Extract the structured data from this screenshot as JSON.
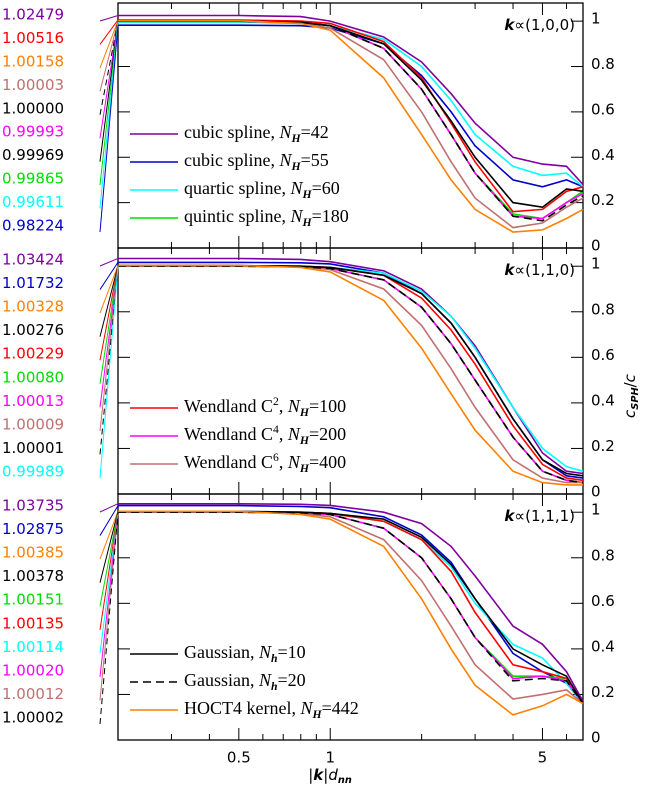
{
  "chart_data": [
    {
      "type": "line",
      "annotation": [
        {
          "t": "k",
          "s": "bi"
        },
        {
          "t": "∝(1,0,0)"
        }
      ],
      "xlim": [
        0.2,
        6.8
      ],
      "ylim": [
        0,
        1.08
      ],
      "yticks": [
        0,
        0.2,
        0.4,
        0.6,
        0.8,
        1
      ],
      "x": [
        0.2,
        0.5,
        0.8,
        1,
        1.5,
        2,
        2.5,
        3,
        4,
        5,
        6,
        6.8
      ],
      "left_labels": [
        {
          "value": 1.02479,
          "label": "1.02479",
          "color": "#7f00a0"
        },
        {
          "value": 1.00516,
          "label": "1.00516",
          "color": "#ff0000"
        },
        {
          "value": 1.00158,
          "label": "1.00158",
          "color": "#ff8000"
        },
        {
          "value": 1.00003,
          "label": "1.00003",
          "color": "#c07070"
        },
        {
          "value": 1.0,
          "label": "1.00000",
          "color": "#000000",
          "dashed": true
        },
        {
          "value": 0.99993,
          "label": "0.99993",
          "color": "#ff00ff"
        },
        {
          "value": 0.99969,
          "label": "0.99969",
          "color": "#000000"
        },
        {
          "value": 0.99865,
          "label": "0.99865",
          "color": "#00dd00"
        },
        {
          "value": 0.99611,
          "label": "0.99611",
          "color": "#00ffff"
        },
        {
          "value": 0.98224,
          "label": "0.98224",
          "color": "#0000cc"
        }
      ],
      "series": [
        {
          "name": [
            {
              "t": "cubic spline, "
            },
            {
              "t": "N",
              "s": "i"
            },
            {
              "t": "H",
              "s": "sub"
            },
            {
              "t": "=42"
            }
          ],
          "color": "#7f00a0",
          "values": [
            1.025,
            1.025,
            1.02,
            1.0,
            0.93,
            0.82,
            0.68,
            0.55,
            0.4,
            0.37,
            0.36,
            0.28
          ]
        },
        {
          "name": [
            {
              "t": "cubic spline, "
            },
            {
              "t": "N",
              "s": "i"
            },
            {
              "t": "H",
              "s": "sub"
            },
            {
              "t": "=55"
            }
          ],
          "color": "#0000cc",
          "values": [
            0.982,
            0.982,
            0.98,
            0.97,
            0.9,
            0.76,
            0.6,
            0.45,
            0.3,
            0.27,
            0.3,
            0.27
          ]
        },
        {
          "name": [
            {
              "t": "quartic spline, "
            },
            {
              "t": "N",
              "s": "i"
            },
            {
              "t": "H",
              "s": "sub"
            },
            {
              "t": "=60"
            }
          ],
          "color": "#00ffff",
          "values": [
            0.996,
            0.996,
            0.99,
            0.98,
            0.92,
            0.8,
            0.65,
            0.5,
            0.36,
            0.32,
            0.33,
            0.27
          ]
        },
        {
          "name": [
            {
              "t": "quintic spline, "
            },
            {
              "t": "N",
              "s": "i"
            },
            {
              "t": "H",
              "s": "sub"
            },
            {
              "t": "=180"
            }
          ],
          "color": "#00dd00",
          "values": [
            0.999,
            0.999,
            0.995,
            0.98,
            0.88,
            0.7,
            0.5,
            0.33,
            0.15,
            0.13,
            0.2,
            0.25
          ]
        },
        {
          "color": "#ff0000",
          "values": [
            1.005,
            1.005,
            1.0,
            0.99,
            0.91,
            0.75,
            0.55,
            0.38,
            0.16,
            0.17,
            0.25,
            0.27
          ]
        },
        {
          "color": "#ff00ff",
          "values": [
            0.9999,
            0.9999,
            0.995,
            0.98,
            0.88,
            0.7,
            0.5,
            0.33,
            0.14,
            0.13,
            0.2,
            0.24
          ]
        },
        {
          "color": "#c07070",
          "values": [
            1.0,
            1.0,
            0.99,
            0.97,
            0.83,
            0.6,
            0.38,
            0.22,
            0.09,
            0.11,
            0.18,
            0.22
          ]
        },
        {
          "color": "#000000",
          "values": [
            0.9997,
            0.9997,
            0.995,
            0.98,
            0.9,
            0.74,
            0.56,
            0.4,
            0.2,
            0.18,
            0.26,
            0.25
          ]
        },
        {
          "color": "#000000",
          "dashed": true,
          "values": [
            1.0,
            1.0,
            0.995,
            0.98,
            0.88,
            0.7,
            0.5,
            0.33,
            0.14,
            0.12,
            0.19,
            0.23
          ]
        },
        {
          "color": "#ff8000",
          "values": [
            1.0016,
            1.0016,
            0.99,
            0.96,
            0.75,
            0.5,
            0.3,
            0.17,
            0.07,
            0.08,
            0.13,
            0.17
          ]
        }
      ]
    },
    {
      "type": "line",
      "annotation": [
        {
          "t": "k",
          "s": "bi"
        },
        {
          "t": "∝(1,1,0)"
        }
      ],
      "xlim": [
        0.2,
        6.8
      ],
      "ylim": [
        0,
        1.08
      ],
      "yticks": [
        0,
        0.2,
        0.4,
        0.6,
        0.8,
        1
      ],
      "ylabel": [
        {
          "t": "c",
          "s": "i"
        },
        {
          "t": "SPH",
          "s": "sub"
        },
        {
          "t": "/"
        },
        {
          "t": "c",
          "s": "i"
        }
      ],
      "x": [
        0.2,
        0.5,
        0.8,
        1,
        1.5,
        2,
        2.5,
        3,
        4,
        5,
        6,
        6.8
      ],
      "left_labels": [
        {
          "value": 1.03424,
          "label": "1.03424",
          "color": "#7f00a0"
        },
        {
          "value": 1.01732,
          "label": "1.01732",
          "color": "#0000cc"
        },
        {
          "value": 1.00328,
          "label": "1.00328",
          "color": "#ff8000"
        },
        {
          "value": 1.00276,
          "label": "1.00276",
          "color": "#000000"
        },
        {
          "value": 1.00229,
          "label": "1.00229",
          "color": "#ff0000"
        },
        {
          "value": 1.0008,
          "label": "1.00080",
          "color": "#00dd00"
        },
        {
          "value": 1.00013,
          "label": "1.00013",
          "color": "#ff00ff"
        },
        {
          "value": 1.00009,
          "label": "1.00009",
          "color": "#c07070"
        },
        {
          "value": 1.00001,
          "label": "1.00001",
          "color": "#000000",
          "dashed": true
        },
        {
          "value": 0.99989,
          "label": "0.99989",
          "color": "#00ffff"
        }
      ],
      "series": [
        {
          "color": "#7f00a0",
          "values": [
            1.034,
            1.034,
            1.03,
            1.02,
            0.98,
            0.9,
            0.78,
            0.65,
            0.38,
            0.18,
            0.1,
            0.09
          ]
        },
        {
          "color": "#0000cc",
          "values": [
            1.017,
            1.017,
            1.015,
            1.01,
            0.97,
            0.88,
            0.75,
            0.6,
            0.33,
            0.15,
            0.08,
            0.07
          ]
        },
        {
          "color": "#00ffff",
          "values": [
            0.9999,
            0.9999,
            0.998,
            0.995,
            0.97,
            0.89,
            0.78,
            0.64,
            0.38,
            0.2,
            0.12,
            0.1
          ]
        },
        {
          "color": "#00dd00",
          "values": [
            1.0008,
            1.0008,
            1.0,
            0.99,
            0.94,
            0.82,
            0.66,
            0.5,
            0.25,
            0.1,
            0.06,
            0.05
          ]
        },
        {
          "name": [
            {
              "t": "Wendland C"
            },
            {
              "t": "2",
              "s": "sup"
            },
            {
              "t": ", "
            },
            {
              "t": "N",
              "s": "i"
            },
            {
              "t": "H",
              "s": "sub"
            },
            {
              "t": "=100"
            }
          ],
          "color": "#ff0000",
          "values": [
            1.0023,
            1.0023,
            1.0,
            0.995,
            0.96,
            0.86,
            0.72,
            0.57,
            0.3,
            0.13,
            0.07,
            0.06
          ]
        },
        {
          "name": [
            {
              "t": "Wendland C"
            },
            {
              "t": "4",
              "s": "sup"
            },
            {
              "t": ", "
            },
            {
              "t": "N",
              "s": "i"
            },
            {
              "t": "H",
              "s": "sub"
            },
            {
              "t": "=200"
            }
          ],
          "color": "#ff00ff",
          "values": [
            1.0001,
            1.0001,
            0.999,
            0.99,
            0.94,
            0.82,
            0.66,
            0.5,
            0.25,
            0.1,
            0.06,
            0.05
          ]
        },
        {
          "name": [
            {
              "t": "Wendland C"
            },
            {
              "t": "6",
              "s": "sup"
            },
            {
              "t": ", "
            },
            {
              "t": "N",
              "s": "i"
            },
            {
              "t": "H",
              "s": "sub"
            },
            {
              "t": "=400"
            }
          ],
          "color": "#c07070",
          "values": [
            1.0001,
            1.0001,
            0.998,
            0.985,
            0.9,
            0.74,
            0.55,
            0.38,
            0.15,
            0.07,
            0.05,
            0.05
          ]
        },
        {
          "color": "#000000",
          "values": [
            1.0028,
            1.0028,
            1.0,
            0.995,
            0.96,
            0.88,
            0.75,
            0.6,
            0.33,
            0.15,
            0.09,
            0.08
          ]
        },
        {
          "color": "#000000",
          "dashed": true,
          "values": [
            1.0,
            1.0,
            0.998,
            0.99,
            0.94,
            0.82,
            0.66,
            0.5,
            0.25,
            0.1,
            0.06,
            0.05
          ]
        },
        {
          "color": "#ff8000",
          "values": [
            1.0033,
            1.0033,
            0.995,
            0.975,
            0.85,
            0.64,
            0.44,
            0.28,
            0.1,
            0.05,
            0.04,
            0.04
          ]
        }
      ]
    },
    {
      "type": "line",
      "annotation": [
        {
          "t": "k",
          "s": "bi"
        },
        {
          "t": "∝(1,1,1)"
        }
      ],
      "xlim": [
        0.2,
        6.8
      ],
      "ylim": [
        0,
        1.08
      ],
      "yticks": [
        0,
        0.2,
        0.4,
        0.6,
        0.8,
        1
      ],
      "xticks": [
        0.5,
        1,
        5
      ],
      "xminor": [
        0.3,
        0.4,
        0.6,
        0.7,
        0.8,
        0.9,
        2,
        3,
        4,
        6
      ],
      "xlabel": [
        {
          "t": "|"
        },
        {
          "t": "k",
          "s": "bi"
        },
        {
          "t": "|"
        },
        {
          "t": "d",
          "s": "i"
        },
        {
          "t": "nn",
          "s": "sub"
        }
      ],
      "x": [
        0.2,
        0.5,
        0.8,
        1,
        1.5,
        2,
        2.5,
        3,
        4,
        5,
        6,
        6.8
      ],
      "left_labels": [
        {
          "value": 1.03735,
          "label": "1.03735",
          "color": "#7f00a0"
        },
        {
          "value": 1.02875,
          "label": "1.02875",
          "color": "#0000cc"
        },
        {
          "value": 1.00385,
          "label": "1.00385",
          "color": "#ff8000"
        },
        {
          "value": 1.00378,
          "label": "1.00378",
          "color": "#000000"
        },
        {
          "value": 1.00151,
          "label": "1.00151",
          "color": "#00dd00"
        },
        {
          "value": 1.00135,
          "label": "1.00135",
          "color": "#ff0000"
        },
        {
          "value": 1.00114,
          "label": "1.00114",
          "color": "#00ffff"
        },
        {
          "value": 1.0002,
          "label": "1.00020",
          "color": "#ff00ff"
        },
        {
          "value": 1.00012,
          "label": "1.00012",
          "color": "#c07070"
        },
        {
          "value": 1.00002,
          "label": "1.00002",
          "color": "#000000",
          "dashed": true
        }
      ],
      "series": [
        {
          "color": "#7f00a0",
          "values": [
            1.037,
            1.037,
            1.035,
            1.03,
            1.0,
            0.95,
            0.85,
            0.72,
            0.5,
            0.42,
            0.3,
            0.17
          ]
        },
        {
          "color": "#0000cc",
          "values": [
            1.029,
            1.029,
            1.025,
            1.02,
            0.98,
            0.9,
            0.78,
            0.62,
            0.38,
            0.3,
            0.25,
            0.16
          ]
        },
        {
          "color": "#00ffff",
          "values": [
            1.001,
            1.001,
            1.0,
            0.995,
            0.96,
            0.88,
            0.76,
            0.6,
            0.42,
            0.36,
            0.25,
            0.16
          ]
        },
        {
          "color": "#00dd00",
          "values": [
            1.0015,
            1.0015,
            0.998,
            0.99,
            0.93,
            0.8,
            0.62,
            0.45,
            0.28,
            0.28,
            0.27,
            0.16
          ]
        },
        {
          "color": "#ff0000",
          "values": [
            1.0014,
            1.0014,
            1.0,
            0.995,
            0.96,
            0.88,
            0.74,
            0.56,
            0.33,
            0.3,
            0.27,
            0.16
          ]
        },
        {
          "color": "#ff00ff",
          "values": [
            1.0002,
            1.0002,
            0.998,
            0.99,
            0.93,
            0.8,
            0.62,
            0.45,
            0.27,
            0.28,
            0.26,
            0.16
          ]
        },
        {
          "color": "#c07070",
          "values": [
            1.0001,
            1.0001,
            0.995,
            0.98,
            0.88,
            0.7,
            0.5,
            0.33,
            0.18,
            0.2,
            0.22,
            0.16
          ]
        },
        {
          "name": [
            {
              "t": "Gaussian, "
            },
            {
              "t": "N",
              "s": "i"
            },
            {
              "t": "h",
              "s": "sub"
            },
            {
              "t": "=10"
            }
          ],
          "color": "#000000",
          "values": [
            1.0038,
            1.0038,
            1.0,
            0.995,
            0.97,
            0.89,
            0.77,
            0.62,
            0.4,
            0.33,
            0.28,
            0.16
          ]
        },
        {
          "name": [
            {
              "t": "Gaussian, "
            },
            {
              "t": "N",
              "s": "i"
            },
            {
              "t": "h",
              "s": "sub"
            },
            {
              "t": "=20"
            }
          ],
          "color": "#000000",
          "dashed": true,
          "values": [
            1.0,
            1.0,
            0.998,
            0.99,
            0.93,
            0.8,
            0.62,
            0.45,
            0.26,
            0.27,
            0.26,
            0.16
          ]
        },
        {
          "name": [
            {
              "t": "HOCT4 kernel, "
            },
            {
              "t": "N",
              "s": "i"
            },
            {
              "t": "H",
              "s": "sub"
            },
            {
              "t": "=442"
            }
          ],
          "color": "#ff8000",
          "values": [
            1.0039,
            1.0039,
            0.99,
            0.97,
            0.85,
            0.62,
            0.4,
            0.24,
            0.11,
            0.15,
            0.2,
            0.16
          ]
        }
      ]
    }
  ]
}
